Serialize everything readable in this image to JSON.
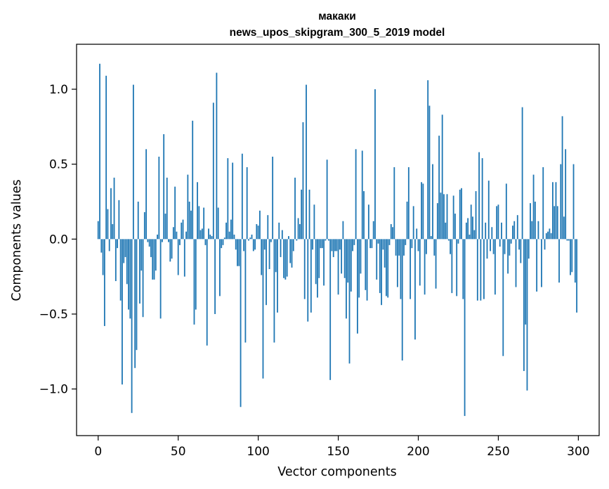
{
  "chart_data": {
    "type": "bar",
    "title": "макаки",
    "subtitle": "news_upos_skipgram_300_5_2019 model",
    "xlabel": "Vector components",
    "ylabel": "Components values",
    "xlim": [
      -13.5,
      313
    ],
    "ylim": [
      -1.311,
      1.3
    ],
    "xticks": [
      0,
      50,
      100,
      150,
      200,
      250,
      300
    ],
    "xtick_labels": [
      "0",
      "50",
      "100",
      "150",
      "200",
      "250",
      "300"
    ],
    "yticks": [
      -1.0,
      -0.5,
      0.0,
      0.5,
      1.0
    ],
    "ytick_labels": [
      "−1.0",
      "−0.5",
      "0.0",
      "0.5",
      "1.0"
    ],
    "grid": false,
    "bar_color": "#1f77b4",
    "values": [
      0.12,
      1.17,
      -0.09,
      -0.24,
      -0.58,
      1.09,
      0.2,
      -0.08,
      0.34,
      0.1,
      0.41,
      -0.28,
      -0.06,
      0.26,
      -0.41,
      -0.97,
      -0.16,
      -0.12,
      -0.3,
      -0.47,
      -0.53,
      -1.16,
      1.03,
      -0.86,
      -0.74,
      0.25,
      -0.43,
      -0.21,
      -0.52,
      0.18,
      0.6,
      -0.02,
      -0.05,
      -0.12,
      -0.27,
      -0.27,
      -0.21,
      0.03,
      0.55,
      -0.53,
      -0.02,
      0.7,
      0.17,
      0.41,
      -0.02,
      -0.15,
      -0.13,
      0.08,
      0.35,
      0.05,
      -0.24,
      -0.04,
      0.11,
      0.13,
      -0.25,
      0.05,
      0.43,
      0.25,
      0.19,
      0.79,
      -0.57,
      -0.47,
      0.38,
      0.22,
      0.06,
      0.07,
      0.21,
      -0.04,
      -0.71,
      0.07,
      0.03,
      0.02,
      0.91,
      -0.5,
      1.11,
      0.21,
      -0.38,
      -0.06,
      -0.04,
      0.01,
      0.11,
      0.54,
      0.05,
      0.13,
      0.51,
      0.03,
      -0.07,
      -0.18,
      -0.18,
      -1.12,
      0.57,
      -0.08,
      -0.69,
      0.48,
      -0.01,
      0.01,
      0.03,
      -0.08,
      -0.07,
      0.1,
      0.09,
      0.19,
      -0.24,
      -0.93,
      -0.07,
      -0.44,
      0.16,
      -0.2,
      -0.02,
      0.55,
      -0.69,
      -0.22,
      -0.49,
      0.11,
      -0.12,
      0.06,
      -0.26,
      -0.27,
      -0.25,
      0.02,
      -0.16,
      -0.19,
      -0.08,
      0.41,
      -0.01,
      0.14,
      0.1,
      0.33,
      0.78,
      -0.4,
      1.03,
      -0.55,
      0.33,
      -0.49,
      -0.07,
      0.23,
      -0.3,
      -0.39,
      -0.26,
      -0.06,
      -0.06,
      -0.31,
      -0.01,
      0.53,
      -0.01,
      -0.94,
      -0.08,
      -0.12,
      -0.08,
      -0.08,
      -0.37,
      -0.07,
      -0.23,
      0.12,
      -0.26,
      -0.53,
      -0.29,
      -0.83,
      -0.35,
      -0.08,
      -0.04,
      0.6,
      -0.63,
      -0.39,
      -0.23,
      0.59,
      0.32,
      -0.34,
      -0.41,
      0.23,
      -0.06,
      -0.06,
      0.12,
      1.0,
      -0.27,
      -0.03,
      -0.36,
      -0.44,
      -0.07,
      -0.19,
      -0.38,
      -0.39,
      -0.04,
      0.1,
      0.08,
      0.48,
      -0.11,
      -0.32,
      -0.11,
      -0.4,
      -0.81,
      -0.11,
      -0.04,
      0.25,
      0.48,
      -0.4,
      -0.06,
      0.22,
      -0.67,
      0.07,
      -0.08,
      -0.31,
      0.38,
      0.37,
      -0.37,
      -0.1,
      1.06,
      0.89,
      0.02,
      0.5,
      -0.11,
      -0.33,
      0.24,
      0.69,
      0.31,
      0.83,
      0.3,
      0.11,
      0.3,
      -0.01,
      -0.1,
      -0.36,
      0.29,
      0.17,
      -0.38,
      -0.03,
      0.33,
      0.34,
      -0.4,
      -1.18,
      0.11,
      0.14,
      0.03,
      0.23,
      0.15,
      0.06,
      0.32,
      -0.41,
      0.58,
      -0.41,
      0.54,
      -0.4,
      0.11,
      -0.13,
      0.39,
      -0.08,
      0.08,
      -0.1,
      -0.37,
      0.22,
      0.23,
      -0.05,
      0.11,
      -0.78,
      -0.1,
      0.37,
      -0.23,
      -0.11,
      -0.03,
      0.09,
      0.12,
      -0.32,
      0.16,
      -0.07,
      -0.16,
      0.88,
      -0.88,
      -0.57,
      -1.01,
      -0.13,
      0.24,
      0.12,
      0.43,
      0.25,
      -0.35,
      0.12,
      0.0,
      -0.32,
      0.48,
      -0.07,
      0.04,
      0.05,
      0.07,
      0.04,
      0.38,
      0.22,
      0.38,
      0.22,
      -0.29,
      0.5,
      0.82,
      0.15,
      0.6,
      -0.01,
      -0.01,
      -0.24,
      -0.22,
      0.5,
      -0.29,
      -0.49
    ]
  }
}
